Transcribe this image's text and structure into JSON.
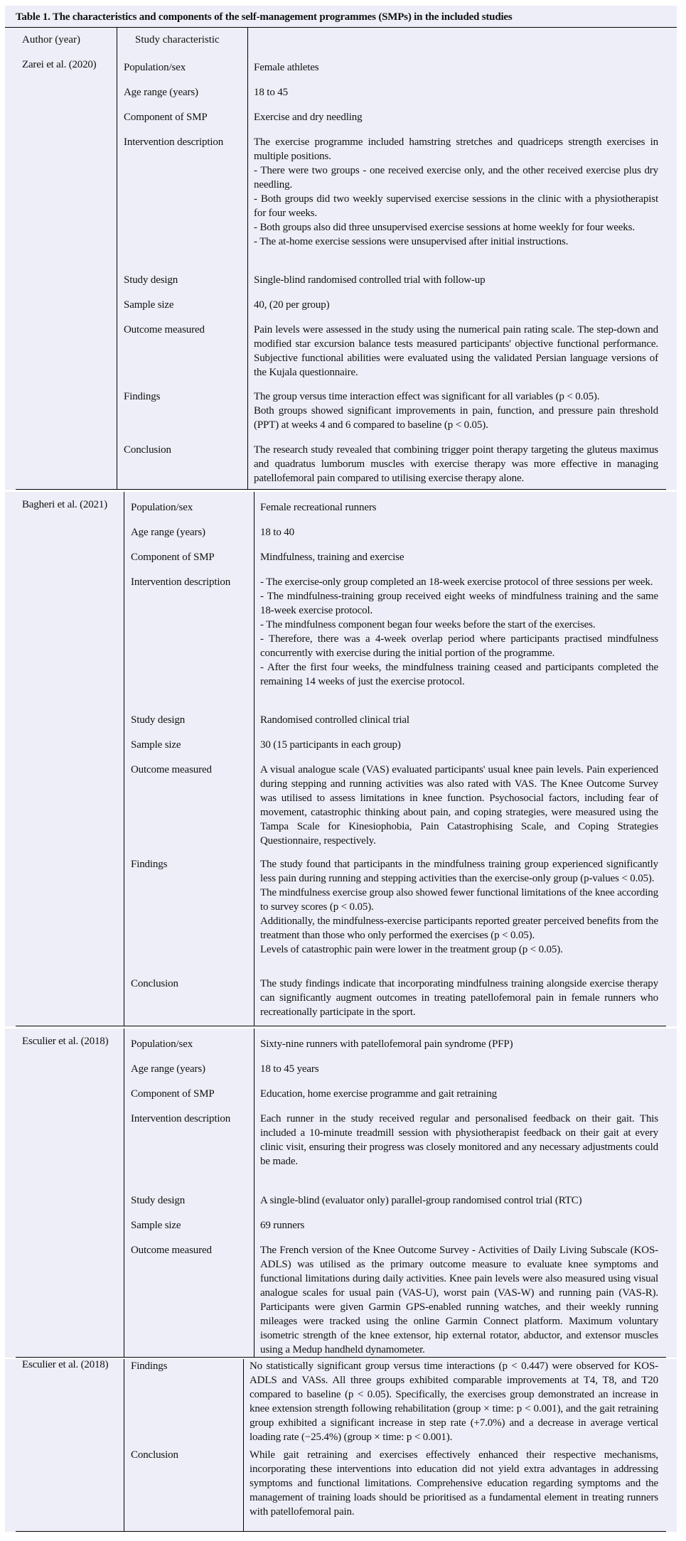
{
  "table": {
    "title": "Table 1. The characteristics and components of the self-management programmes (SMPs) in the included studies",
    "headers": [
      "Author (year)",
      "Study characteristic",
      ""
    ],
    "studies": [
      {
        "author": "Zarei et al. (2020)",
        "rows": [
          {
            "label": "Population/sex",
            "value": [
              "Female athletes"
            ]
          },
          {
            "label": "Age range (years)",
            "value": [
              "18 to 45"
            ]
          },
          {
            "label": "Component of SMP",
            "value": [
              "Exercise and dry needling"
            ]
          },
          {
            "label": "Intervention description",
            "value": [
              "The exercise programme included hamstring stretches and quadriceps strength exercises in multiple positions.",
              "- There were two groups - one received exercise only, and the other received exercise plus dry needling.",
              "- Both groups did two weekly supervised exercise sessions in the clinic with a physiotherapist for four weeks.",
              "- Both groups also did three unsupervised exercise sessions at home weekly for four weeks.",
              "- The at-home exercise sessions were unsupervised after initial instructions."
            ]
          },
          {
            "label": "Study design",
            "value": [
              "Single-blind randomised controlled trial with follow-up"
            ]
          },
          {
            "label": "Sample size",
            "value": [
              "40, (20 per group)"
            ]
          },
          {
            "label": "Outcome measured",
            "value": [
              "Pain levels were assessed in the study using the numerical pain rating scale. The step-down and modified star excursion balance tests measured participants' objective functional performance. Subjective functional abilities were evaluated using the validated Persian language versions of the Kujala questionnaire."
            ]
          },
          {
            "label": "Findings",
            "value": [
              "The group versus time interaction effect was significant for all variables (p < 0.05).",
              "Both groups showed significant improvements in pain, function, and pressure pain threshold (PPT) at weeks 4 and 6 compared to baseline (p < 0.05)."
            ]
          },
          {
            "label": "Conclusion",
            "value": [
              "The research study revealed that combining trigger point therapy targeting the gluteus maximus and quadratus lumborum muscles with exercise therapy was more effective in managing patellofemoral pain compared to utilising exercise therapy alone."
            ]
          }
        ]
      },
      {
        "author": "Bagheri et al. (2021)",
        "rows": [
          {
            "label": "Population/sex",
            "value": [
              "Female recreational runners"
            ]
          },
          {
            "label": "Age range (years)",
            "value": [
              "18 to 40"
            ]
          },
          {
            "label": "Component of SMP",
            "value": [
              "Mindfulness, training and exercise"
            ]
          },
          {
            "label": "Intervention description",
            "value": [
              "- The exercise-only group completed an 18-week exercise protocol of three sessions per week.",
              "- The mindfulness-training group received eight weeks of mindfulness training and the same 18-week exercise protocol.",
              "- The mindfulness component began four weeks before the start of the exercises.",
              "- Therefore, there was a 4-week overlap period where participants practised mindfulness concurrently with exercise during the initial portion of the programme.",
              "- After the first four weeks, the mindfulness training ceased and participants completed the remaining 14 weeks of just the exercise protocol."
            ]
          },
          {
            "label": "Study design",
            "value": [
              "Randomised controlled clinical trial"
            ]
          },
          {
            "label": "Sample size",
            "value": [
              "30 (15 participants in each group)"
            ]
          },
          {
            "label": "Outcome measured",
            "value": [
              "A visual analogue scale (VAS) evaluated participants' usual knee pain levels. Pain experienced during stepping and running activities was also rated with VAS. The Knee Outcome Survey was utilised to assess limitations in knee function. Psychosocial factors, including fear of movement, catastrophic thinking about pain, and coping strategies, were measured using the Tampa Scale for Kinesiophobia, Pain Catastrophising Scale, and Coping Strategies Questionnaire, respectively."
            ]
          },
          {
            "label": "Findings",
            "value": [
              "The study found that participants in the mindfulness training group experienced significantly less pain during running and stepping activities than the exercise-only group (p-values < 0.05).",
              "The mindfulness exercise group also showed fewer functional limitations of the knee according to survey scores (p < 0.05).",
              "Additionally, the mindfulness-exercise participants reported greater perceived benefits from the treatment than those who only performed the exercises (p < 0.05).",
              "Levels of catastrophic pain were lower in the treatment group (p < 0.05)."
            ]
          },
          {
            "label": "Conclusion",
            "value": [
              "The study findings indicate that incorporating mindfulness training alongside exercise therapy can significantly augment outcomes in treating patellofemoral pain in female runners who recreationally participate in the sport."
            ]
          }
        ]
      },
      {
        "author": "Esculier et al. (2018)",
        "rows": [
          {
            "label": "Population/sex",
            "value": [
              "Sixty-nine runners with patellofemoral pain syndrome (PFP)"
            ]
          },
          {
            "label": "Age range (years)",
            "value": [
              "18 to 45 years"
            ]
          },
          {
            "label": "Component of SMP",
            "value": [
              "Education, home exercise programme and gait retraining"
            ]
          },
          {
            "label": "Intervention description",
            "value": [
              "Each runner in the study received regular and personalised feedback on their gait. This included a 10-minute treadmill session with physiotherapist feedback on their gait at every clinic visit, ensuring their progress was closely monitored and any necessary adjustments could be made."
            ]
          },
          {
            "label": "Study design",
            "value": [
              "A single-blind (evaluator only) parallel-group randomised control trial (RTC)"
            ]
          },
          {
            "label": "Sample size",
            "value": [
              "69 runners"
            ]
          },
          {
            "label": "Outcome measured",
            "value": [
              "The French version of the Knee Outcome Survey - Activities of Daily Living Subscale (KOS-ADLS) was utilised as the primary outcome measure to evaluate knee symptoms and functional limitations during daily activities. Knee pain levels were also measured using visual analogue scales for usual pain (VAS-U), worst pain (VAS-W) and running pain (VAS-R). Participants were given Garmin GPS-enabled running watches, and their weekly running mileages were tracked using the online Garmin Connect platform.  Maximum voluntary isometric strength of the knee extensor, hip external rotator, abductor, and extensor muscles using a Medup handheld dynamometer."
            ]
          }
        ]
      },
      {
        "author": "Esculier et al. (2018)",
        "rows": [
          {
            "label": "Findings",
            "value": [
              "No statistically significant group versus time interactions (p < 0.447) were observed for KOS-ADLS and VASs. All three groups exhibited comparable improvements at T4, T8, and T20 compared to baseline (p < 0.05). Specifically, the exercises group demonstrated an increase in knee extension strength following rehabilitation (group × time: p < 0.001), and the gait retraining group exhibited a significant increase in step rate (+7.0%) and a decrease in average vertical loading rate (−25.4%) (group × time: p < 0.001)."
            ]
          },
          {
            "label": "Conclusion",
            "value": [
              "While gait retraining and exercises effectively enhanced their respective mechanisms, incorporating these interventions into education did not yield extra advantages in addressing symptoms and functional limitations. Comprehensive education regarding symptoms and the management of training loads should be prioritised as a fundamental element in treating runners with patellofemoral pain."
            ]
          }
        ]
      }
    ]
  }
}
